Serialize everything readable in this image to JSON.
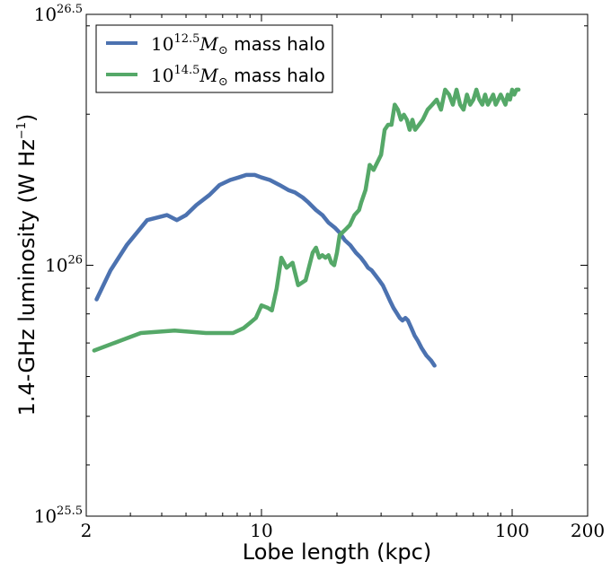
{
  "chart_data": {
    "type": "line",
    "xlabel": "Lobe length (kpc)",
    "ylabel_main": "1.4-GHz luminosity (W Hz",
    "ylabel_sup": "−1",
    "ylabel_close": ")",
    "xscale": "log",
    "yscale": "log",
    "xlim": [
      2,
      200
    ],
    "ylim": [
      3.1623e+25,
      3.1623e+26
    ],
    "grid": false,
    "legend_position": "top-left",
    "x_ticks": [
      {
        "value": 2,
        "label": "2"
      },
      {
        "value": 10,
        "label": "10"
      },
      {
        "value": 100,
        "label": "100"
      },
      {
        "value": 200,
        "label": "200"
      }
    ],
    "y_ticks": [
      {
        "value": 3.1623e+25,
        "base": "10",
        "exp": "25.5"
      },
      {
        "value": 1e+26,
        "base": "10",
        "exp": "26"
      },
      {
        "value": 3.1623e+26,
        "base": "10",
        "exp": "26.5"
      }
    ],
    "series": [
      {
        "legend_base": "10",
        "legend_exp": "12.5",
        "legend_symbol": "M",
        "legend_symbol_sub": "⊙",
        "legend_suffix": " mass halo",
        "color": "#4C72B0",
        "x": [
          2.2,
          2.5,
          2.9,
          3.5,
          4.2,
          4.6,
          5.0,
          5.5,
          6.2,
          6.8,
          7.5,
          8.1,
          8.7,
          9.4,
          10.0,
          10.8,
          11.8,
          12.8,
          13.6,
          14.6,
          15.4,
          16.5,
          17.5,
          18.5,
          19.6,
          20.5,
          21.5,
          22.6,
          23.8,
          24.9,
          25.8,
          26.6,
          27.5,
          28.5,
          29.5,
          30.5,
          31.5,
          32.5,
          33.6,
          34.6,
          35.6,
          36.5,
          37.5,
          38.4,
          39.6,
          40.8,
          42.0,
          43.5,
          45.5,
          47.5,
          49.0
        ],
        "y": [
          8.55e+25,
          9.77e+25,
          1.0965e+26,
          1.2303e+26,
          1.2589e+26,
          1.2303e+26,
          1.2589e+26,
          1.3183e+26,
          1.3804e+26,
          1.4454e+26,
          1.4791e+26,
          1.4962e+26,
          1.5136e+26,
          1.5136e+26,
          1.4962e+26,
          1.4791e+26,
          1.4454e+26,
          1.4125e+26,
          1.3964e+26,
          1.3646e+26,
          1.3335e+26,
          1.2882e+26,
          1.2589e+26,
          1.2162e+26,
          1.1885e+26,
          1.1614e+26,
          1.122e+26,
          1.0965e+26,
          1.0593e+26,
          1.0351e+26,
          1.0116e+26,
          9.886e+25,
          9.772e+25,
          9.55e+25,
          9.333e+25,
          9.12e+25,
          8.81e+25,
          8.511e+25,
          8.222e+25,
          8.035e+25,
          7.852e+25,
          7.762e+25,
          7.852e+25,
          7.762e+25,
          7.498e+25,
          7.244e+25,
          7.079e+25,
          6.839e+25,
          6.607e+25,
          6.456e+25,
          6.31e+25
        ]
      },
      {
        "legend_base": "10",
        "legend_exp": "14.5",
        "legend_symbol": "M",
        "legend_symbol_sub": "⊙",
        "legend_suffix": " mass halo",
        "color": "#55A868",
        "x": [
          2.15,
          3.3,
          4.5,
          6.0,
          7.7,
          8.5,
          9.0,
          9.5,
          10.0,
          10.6,
          11.0,
          11.5,
          12.0,
          12.6,
          13.3,
          14.0,
          15.0,
          16.0,
          16.5,
          17.0,
          17.5,
          18.0,
          18.5,
          19.0,
          19.5,
          20.0,
          20.5,
          21.5,
          22.5,
          23.5,
          24.5,
          25.0,
          26.0,
          27.0,
          28.0,
          30.0,
          31.0,
          32.0,
          33.0,
          34.0,
          35.0,
          36.0,
          37.0,
          38.0,
          39.0,
          40.0,
          41.0,
          42.5,
          44.0,
          46.0,
          48.0,
          50.0,
          52.0,
          54.0,
          56.0,
          58.0,
          60.0,
          62.0,
          64.0,
          66.0,
          68.0,
          70.0,
          72.0,
          74.0,
          76.0,
          78.0,
          80.0,
          82.0,
          84.0,
          86.0,
          88.0,
          90.0,
          92.0,
          94.0,
          96.0,
          98.0,
          100.0,
          102.0,
          104.0,
          106.0
        ],
        "y": [
          6.761e+25,
          7.328e+25,
          7.413e+25,
          7.328e+25,
          7.328e+25,
          7.499e+25,
          7.674e+25,
          7.852e+25,
          8.318e+25,
          8.222e+25,
          8.128e+25,
          8.991e+25,
          1.0351e+26,
          9.886e+25,
          1.0116e+26,
          9.125e+25,
          9.333e+25,
          1.0593e+26,
          1.0839e+26,
          1.0351e+26,
          1.0471e+26,
          1.0351e+26,
          1.0471e+26,
          1.0116e+26,
          1e+26,
          1.0593e+26,
          1.1481e+26,
          1.1749e+26,
          1.2023e+26,
          1.2589e+26,
          1.2882e+26,
          1.3335e+26,
          1.4125e+26,
          1.5849e+26,
          1.5488e+26,
          1.6596e+26,
          1.8621e+26,
          1.9055e+26,
          1.9055e+26,
          2.0893e+26,
          2.0417e+26,
          1.9498e+26,
          1.9953e+26,
          1.9498e+26,
          1.8621e+26,
          1.9498e+26,
          1.8621e+26,
          1.9055e+26,
          1.9498e+26,
          2.0417e+26,
          2.0893e+26,
          2.138e+26,
          2.0417e+26,
          2.2387e+26,
          2.1878e+26,
          2.0893e+26,
          2.2387e+26,
          2.0893e+26,
          2.0417e+26,
          2.1878e+26,
          2.0893e+26,
          2.138e+26,
          2.2387e+26,
          2.138e+26,
          2.0893e+26,
          2.1878e+26,
          2.0893e+26,
          2.138e+26,
          2.1878e+26,
          2.0893e+26,
          2.138e+26,
          2.1878e+26,
          2.138e+26,
          2.0893e+26,
          2.1878e+26,
          2.138e+26,
          2.2387e+26,
          2.1878e+26,
          2.2387e+26,
          2.2387e+26
        ]
      }
    ]
  }
}
